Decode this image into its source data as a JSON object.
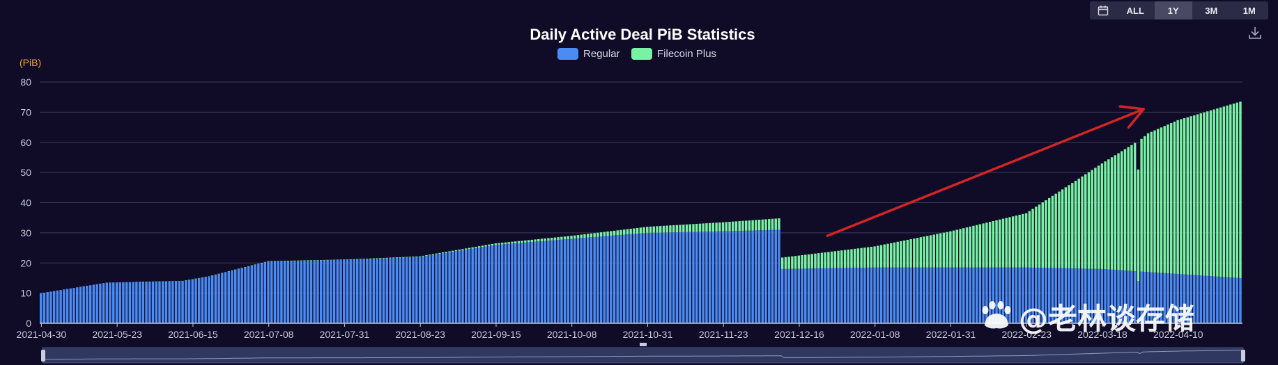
{
  "toolbar": {
    "calendar_icon": "calendar-icon",
    "ranges": [
      "ALL",
      "1Y",
      "3M",
      "1M"
    ],
    "active_range": "1Y",
    "download_icon": "download-icon"
  },
  "watermark": {
    "text": "@老林谈存储",
    "icon": "paw-icon"
  },
  "colors": {
    "regular": "#4b8bf4",
    "filecoin_plus": "#7af2a4",
    "arrow": "#d42424",
    "unit": "#f0a23a"
  },
  "chart_data": {
    "type": "bar",
    "stacked": true,
    "title": "Daily Active Deal PiB Statistics",
    "unit_label": "(PiB)",
    "ylim": [
      0,
      80
    ],
    "y_ticks": [
      0,
      10,
      20,
      30,
      40,
      50,
      60,
      70,
      80
    ],
    "x_start": "2021-04-30",
    "x_end": "2022-04-29",
    "x_ticks": [
      "2021-04-30",
      "2021-05-23",
      "2021-06-15",
      "2021-07-08",
      "2021-07-31",
      "2021-08-23",
      "2021-09-15",
      "2021-10-08",
      "2021-10-31",
      "2021-11-23",
      "2021-12-16",
      "2022-01-08",
      "2022-01-31",
      "2022-02-23",
      "2022-03-18",
      "2022-04-10"
    ],
    "legend": {
      "position": "top-center",
      "entries": [
        "Regular",
        "Filecoin Plus"
      ]
    },
    "grid": true,
    "series": [
      {
        "name": "Regular",
        "keyframes": [
          [
            "2021-04-30",
            10
          ],
          [
            "2021-05-20",
            13.5
          ],
          [
            "2021-06-12",
            14
          ],
          [
            "2021-06-20",
            15.5
          ],
          [
            "2021-07-08",
            20.5
          ],
          [
            "2021-08-01",
            21
          ],
          [
            "2021-08-23",
            22
          ],
          [
            "2021-09-15",
            26
          ],
          [
            "2021-10-08",
            28
          ],
          [
            "2021-10-31",
            30
          ],
          [
            "2021-11-23",
            30.5
          ],
          [
            "2021-12-10",
            31
          ],
          [
            "2021-12-11",
            18
          ],
          [
            "2022-01-08",
            18.5
          ],
          [
            "2022-02-23",
            18.5
          ],
          [
            "2022-03-18",
            18
          ],
          [
            "2022-04-29",
            15
          ]
        ]
      },
      {
        "name": "Filecoin Plus",
        "keyframes": [
          [
            "2021-04-30",
            0
          ],
          [
            "2021-08-23",
            0.2
          ],
          [
            "2021-09-15",
            0.5
          ],
          [
            "2021-10-08",
            1
          ],
          [
            "2021-10-31",
            2
          ],
          [
            "2021-11-23",
            3
          ],
          [
            "2021-12-10",
            3.8
          ],
          [
            "2021-12-11",
            3.8
          ],
          [
            "2022-01-08",
            7
          ],
          [
            "2022-01-31",
            12
          ],
          [
            "2022-02-23",
            18
          ],
          [
            "2022-03-18",
            35
          ],
          [
            "2022-03-30",
            44
          ],
          [
            "2022-04-01",
            46
          ],
          [
            "2022-04-10",
            51
          ],
          [
            "2022-04-29",
            58.5
          ]
        ]
      }
    ],
    "anomalies": [
      {
        "date": "2022-03-29",
        "regular": 14,
        "filecoin_plus": 37
      }
    ],
    "annotation": {
      "type": "arrow",
      "from": [
        "2021-12-25",
        29
      ],
      "to": [
        "2022-03-31",
        71
      ]
    }
  }
}
